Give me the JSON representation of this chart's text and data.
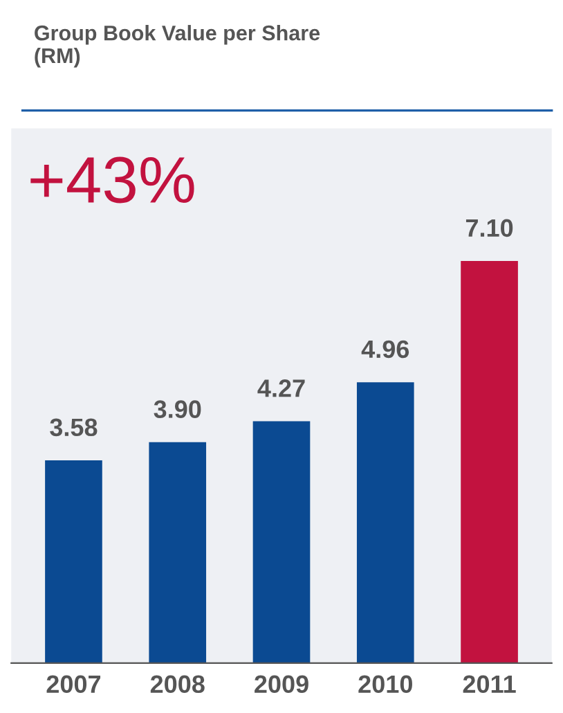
{
  "chart_data": {
    "type": "bar",
    "title": "Group Book Value per Share\n(RM)",
    "categories": [
      "2007",
      "2008",
      "2009",
      "2010",
      "2011"
    ],
    "values": [
      3.58,
      3.9,
      4.27,
      4.96,
      7.1
    ],
    "colors": [
      "#0b4a92",
      "#0b4a92",
      "#0b4a92",
      "#0b4a92",
      "#c2123f"
    ],
    "value_labels": [
      "3.58",
      "3.90",
      "4.27",
      "4.96",
      "7.10"
    ],
    "annotations": [
      "+43%"
    ],
    "grid": false,
    "legend": false
  }
}
